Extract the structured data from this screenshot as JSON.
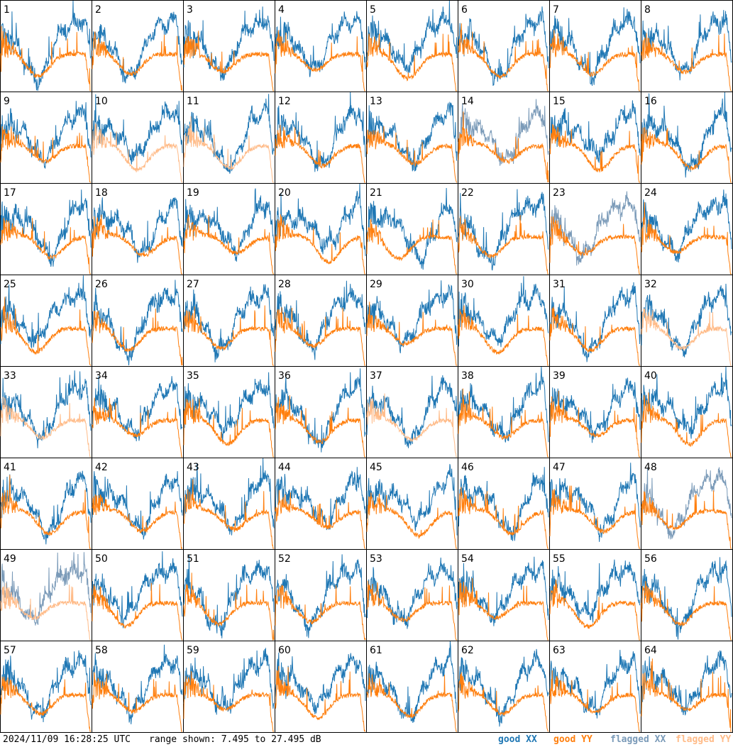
{
  "chart_data": {
    "type": "line",
    "layout": "8x8 small multiples",
    "panel_labels": [
      "1",
      "2",
      "3",
      "4",
      "5",
      "6",
      "7",
      "8",
      "9",
      "10",
      "11",
      "12",
      "13",
      "14",
      "15",
      "16",
      "17",
      "18",
      "19",
      "20",
      "21",
      "22",
      "23",
      "24",
      "25",
      "26",
      "27",
      "28",
      "29",
      "30",
      "31",
      "32",
      "33",
      "34",
      "35",
      "36",
      "37",
      "38",
      "39",
      "40",
      "41",
      "42",
      "43",
      "44",
      "45",
      "46",
      "47",
      "48",
      "49",
      "50",
      "51",
      "52",
      "53",
      "54",
      "55",
      "56",
      "57",
      "58",
      "59",
      "60",
      "61",
      "62",
      "63",
      "64"
    ],
    "ylim": [
      7.495,
      27.495
    ],
    "y_units": "dB",
    "series": [
      {
        "name": "good XX",
        "color": "#1f77b4"
      },
      {
        "name": "good YY",
        "color": "#ff7f0e"
      },
      {
        "name": "flagged XX",
        "color": "#7a9ab8"
      },
      {
        "name": "flagged YY",
        "color": "#ffbb88"
      }
    ],
    "flag_status": {
      "xx": [
        "good",
        "good",
        "good",
        "good",
        "good",
        "good",
        "good",
        "good",
        "good",
        "good",
        "good",
        "good",
        "good",
        "flagged",
        "good",
        "good",
        "good",
        "good",
        "good",
        "good",
        "good",
        "good",
        "flagged",
        "good",
        "good",
        "good",
        "good",
        "good",
        "good",
        "good",
        "good",
        "good",
        "good",
        "good",
        "good",
        "good",
        "good",
        "good",
        "good",
        "good",
        "good",
        "good",
        "good",
        "good",
        "good",
        "good",
        "good",
        "flagged",
        "flagged",
        "good",
        "good",
        "good",
        "good",
        "good",
        "good",
        "good",
        "good",
        "good",
        "good",
        "good",
        "good",
        "good",
        "good",
        "good"
      ],
      "yy": [
        "good",
        "good",
        "good",
        "good",
        "good",
        "good",
        "good",
        "good",
        "good",
        "flagged",
        "flagged",
        "good",
        "good",
        "good",
        "good",
        "good",
        "good",
        "good",
        "good",
        "good",
        "good",
        "good",
        "good",
        "good",
        "good",
        "good",
        "good",
        "good",
        "good",
        "good",
        "good",
        "flagged",
        "flagged",
        "good",
        "good",
        "good",
        "flagged",
        "good",
        "good",
        "good",
        "good",
        "good",
        "good",
        "good",
        "good",
        "good",
        "good",
        "good",
        "flagged",
        "good",
        "good",
        "good",
        "good",
        "good",
        "good",
        "good",
        "good",
        "good",
        "good",
        "good",
        "good",
        "good",
        "good",
        "good"
      ]
    }
  },
  "footer": {
    "timestamp": "2024/11/09 16:28:25 UTC",
    "range": "range shown: 7.495 to 27.495 dB",
    "legend_good_xx": "good XX",
    "legend_good_yy": "good YY",
    "legend_flagged_xx": "flagged XX",
    "legend_flagged_yy": "flagged YY"
  }
}
